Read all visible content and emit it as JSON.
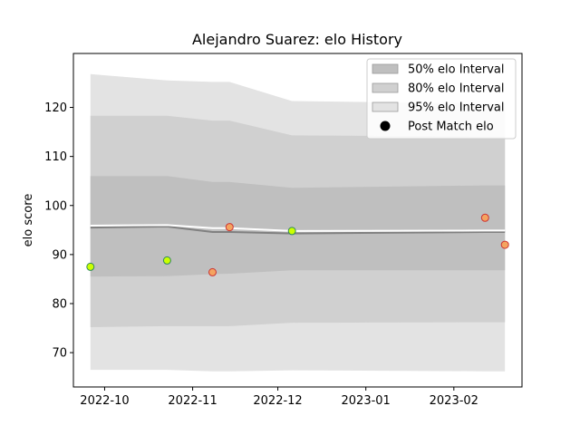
{
  "chart_data": {
    "type": "area",
    "title": "Alejandro Suarez: elo History",
    "xlabel": "",
    "ylabel": "elo score",
    "x_ticks": [
      "2022-10",
      "2022-11",
      "2022-12",
      "2023-01",
      "2023-02"
    ],
    "y_ticks": [
      70,
      80,
      90,
      100,
      110,
      120
    ],
    "xlim": [
      "2022-09-20",
      "2023-02-25"
    ],
    "ylim": [
      63,
      131
    ],
    "legend_position": "top-right",
    "legend": [
      {
        "label": "50% elo Interval",
        "swatch": "band50"
      },
      {
        "label": "80% elo Interval",
        "swatch": "band80"
      },
      {
        "label": "95% elo Interval",
        "swatch": "band95"
      },
      {
        "label": "Post Match elo",
        "swatch": "point"
      }
    ],
    "x": [
      "2022-09-26",
      "2022-10-23",
      "2022-11-08",
      "2022-11-14",
      "2022-12-06",
      "2023-02-12",
      "2023-02-19"
    ],
    "bands": {
      "band95": {
        "lower": [
          66.5,
          66.5,
          66.2,
          66.2,
          66.4,
          66.2,
          66.2
        ],
        "upper": [
          126.8,
          125.5,
          125.2,
          125.2,
          121.3,
          120.8,
          120.8
        ]
      },
      "band80": {
        "lower": [
          75.2,
          75.4,
          75.4,
          75.4,
          76.1,
          76.2,
          76.2
        ],
        "upper": [
          118.3,
          118.3,
          117.3,
          117.3,
          114.3,
          114.1,
          114.1
        ]
      },
      "band50": {
        "lower": [
          85.5,
          85.6,
          86.0,
          86.1,
          86.8,
          86.8,
          86.8
        ],
        "upper": [
          106.0,
          106.0,
          104.8,
          104.8,
          103.6,
          104.1,
          104.1
        ]
      }
    },
    "mean_line": [
      95.5,
      95.7,
      94.6,
      94.6,
      94.3,
      94.6,
      94.6
    ],
    "mean_line_upper": [
      95.9,
      96.0,
      95.4,
      95.4,
      94.8,
      94.9,
      94.9
    ],
    "points": [
      {
        "x": "2022-09-26",
        "y": 87.5,
        "result": "win"
      },
      {
        "x": "2022-10-23",
        "y": 88.8,
        "result": "win"
      },
      {
        "x": "2022-11-08",
        "y": 86.4,
        "result": "loss"
      },
      {
        "x": "2022-11-14",
        "y": 95.6,
        "result": "loss"
      },
      {
        "x": "2022-12-06",
        "y": 94.8,
        "result": "win"
      },
      {
        "x": "2023-02-12",
        "y": 97.5,
        "result": "loss"
      },
      {
        "x": "2023-02-19",
        "y": 92.0,
        "result": "loss"
      }
    ],
    "colors": {
      "band95": "#e3e3e3",
      "band80": "#d0d0d0",
      "band50": "#bfbfbf",
      "mean_line": "#808080",
      "mean_line_upper": "#ffffff",
      "win_fill": "#ccff00",
      "win_edge": "#2e8b57",
      "loss_fill": "#f4a460",
      "loss_edge": "#cd3333",
      "legend_point": "#000000"
    },
    "grid": false
  }
}
